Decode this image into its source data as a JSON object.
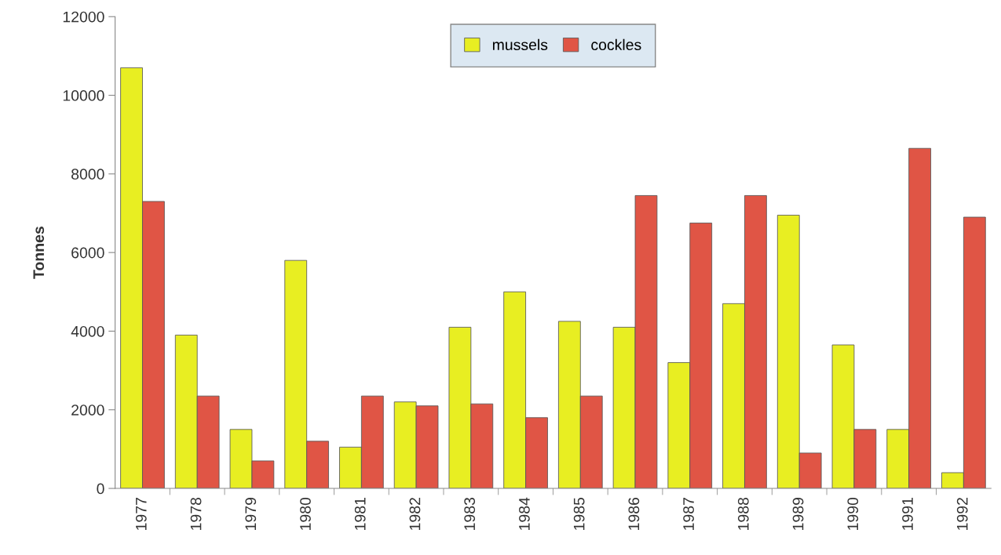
{
  "chart_data": {
    "type": "bar",
    "ylabel": "Tonnes",
    "categories": [
      "1977",
      "1978",
      "1979",
      "1980",
      "1981",
      "1982",
      "1983",
      "1984",
      "1985",
      "1986",
      "1987",
      "1988",
      "1989",
      "1990",
      "1991",
      "1992"
    ],
    "series": [
      {
        "name": "mussels",
        "color": "#e8ee22",
        "values": [
          10700,
          3900,
          1500,
          5800,
          1050,
          2200,
          4100,
          5000,
          4250,
          4100,
          3200,
          4700,
          6950,
          3650,
          1500,
          400
        ]
      },
      {
        "name": "cockles",
        "color": "#e05545",
        "values": [
          7300,
          2350,
          700,
          1200,
          2350,
          2100,
          2150,
          1800,
          2350,
          7450,
          6750,
          7450,
          900,
          1500,
          8650,
          6900
        ]
      }
    ],
    "ylim": [
      0,
      12000
    ],
    "yticks": [
      0,
      2000,
      4000,
      6000,
      8000,
      10000,
      12000
    ],
    "grid": false,
    "legend": "top"
  }
}
